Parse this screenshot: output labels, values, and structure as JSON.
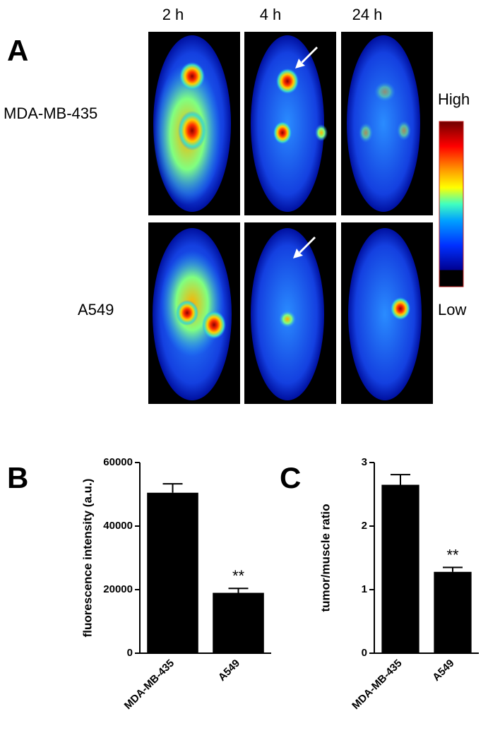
{
  "panel_a": {
    "label": "A",
    "columns": [
      "2 h",
      "4 h",
      "24 h"
    ],
    "rows": [
      "MDA-MB-435",
      "A549"
    ],
    "colorbar": {
      "high": "High",
      "low": "Low"
    }
  },
  "chart_data": [
    {
      "type": "bar",
      "panel_label": "B",
      "ylabel": "fluorescence intensity (a.u.)",
      "categories": [
        "MDA-MB-435",
        "A549"
      ],
      "values": [
        50500,
        19000
      ],
      "errors": [
        2800,
        1400
      ],
      "color": "#000000",
      "ylim": [
        0,
        60000
      ],
      "yticks": [
        0,
        20000,
        40000,
        60000
      ],
      "annotations": [
        {
          "text": "**",
          "category": "A549"
        }
      ]
    },
    {
      "type": "bar",
      "panel_label": "C",
      "ylabel": "tumor/muscle ratio",
      "categories": [
        "MDA-MB-435",
        "A549"
      ],
      "values": [
        2.65,
        1.28
      ],
      "errors": [
        0.16,
        0.07
      ],
      "color": "#000000",
      "ylim": [
        0,
        3
      ],
      "yticks": [
        0,
        1,
        2,
        3
      ],
      "annotations": [
        {
          "text": "**",
          "category": "A549"
        }
      ]
    }
  ]
}
